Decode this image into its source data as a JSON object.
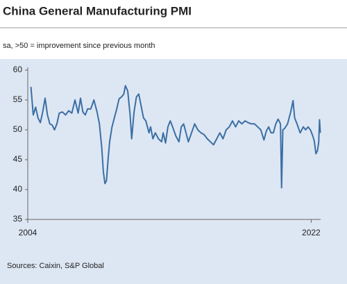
{
  "chart_data": {
    "type": "line",
    "title": "China General Manufacturing PMI",
    "subtitle": "sa, >50 = improvement since previous month",
    "source": "Sources: Caixin, S&P Global",
    "x": [
      2004.2,
      2004.35,
      2004.5,
      2004.65,
      2004.8,
      2004.95,
      2005.1,
      2005.25,
      2005.4,
      2005.55,
      2005.7,
      2005.85,
      2006.0,
      2006.2,
      2006.4,
      2006.6,
      2006.8,
      2007.0,
      2007.2,
      2007.35,
      2007.5,
      2007.65,
      2007.8,
      2008.0,
      2008.2,
      2008.4,
      2008.55,
      2008.7,
      2008.8,
      2008.9,
      2009.0,
      2009.1,
      2009.2,
      2009.35,
      2009.5,
      2009.65,
      2009.8,
      2009.95,
      2010.1,
      2010.2,
      2010.35,
      2010.5,
      2010.6,
      2010.75,
      2010.9,
      2011.05,
      2011.2,
      2011.35,
      2011.5,
      2011.7,
      2011.8,
      2011.95,
      2012.1,
      2012.3,
      2012.5,
      2012.6,
      2012.75,
      2012.9,
      2013.05,
      2013.2,
      2013.4,
      2013.6,
      2013.75,
      2013.9,
      2014.05,
      2014.2,
      2014.4,
      2014.6,
      2014.8,
      2015.0,
      2015.2,
      2015.4,
      2015.6,
      2015.8,
      2016.0,
      2016.2,
      2016.4,
      2016.6,
      2016.8,
      2017.0,
      2017.2,
      2017.4,
      2017.6,
      2017.8,
      2018.0,
      2018.2,
      2018.4,
      2018.6,
      2018.8,
      2019.0,
      2019.15,
      2019.3,
      2019.45,
      2019.6,
      2019.75,
      2019.9,
      2020.05,
      2020.12,
      2020.2,
      2020.3,
      2020.5,
      2020.7,
      2020.85,
      2020.95,
      2021.1,
      2021.3,
      2021.5,
      2021.65,
      2021.8,
      2021.95,
      2022.1,
      2022.2,
      2022.3,
      2022.4,
      2022.48,
      2022.53,
      2022.58
    ],
    "series": [
      {
        "color": "#3b6ea5",
        "values": [
          57.2,
          52.5,
          53.8,
          52,
          51.2,
          53,
          55.3,
          52.5,
          51,
          50.8,
          50,
          51,
          52.8,
          53,
          52.5,
          53.2,
          52.8,
          55,
          52.8,
          55.3,
          53,
          52.5,
          53.5,
          53.5,
          55,
          53,
          51,
          47,
          43,
          41,
          41.5,
          45,
          48,
          50.5,
          52,
          53.5,
          55.2,
          55.5,
          56,
          57.4,
          56.5,
          52.5,
          48.5,
          53,
          55.5,
          56,
          54,
          52,
          51.5,
          49.5,
          50.5,
          48.5,
          49.5,
          48.5,
          48,
          49.5,
          47.8,
          50.5,
          51.5,
          50.5,
          49,
          48,
          50.5,
          51,
          49.5,
          48,
          49.5,
          51,
          50,
          49.5,
          49.2,
          48.5,
          48,
          47.5,
          48.5,
          49.5,
          48.5,
          50,
          50.5,
          51.5,
          50.5,
          51.5,
          51,
          51.5,
          51.2,
          51,
          51,
          50.5,
          50,
          48.3,
          49.8,
          50.5,
          49.5,
          49.5,
          51,
          51.8,
          51,
          40.3,
          50,
          50.2,
          51,
          53,
          54.9,
          52,
          51,
          49.5,
          50.5,
          50,
          50.5,
          50,
          49,
          48.1,
          46,
          46.5,
          48,
          51.7,
          49.5
        ]
      }
    ],
    "xlim": [
      2004,
      2022.6
    ],
    "xticks": [
      2004,
      2022
    ],
    "ylim": [
      35,
      60
    ],
    "yticks": [
      35,
      40,
      45,
      50,
      55,
      60
    ],
    "grid": false
  }
}
